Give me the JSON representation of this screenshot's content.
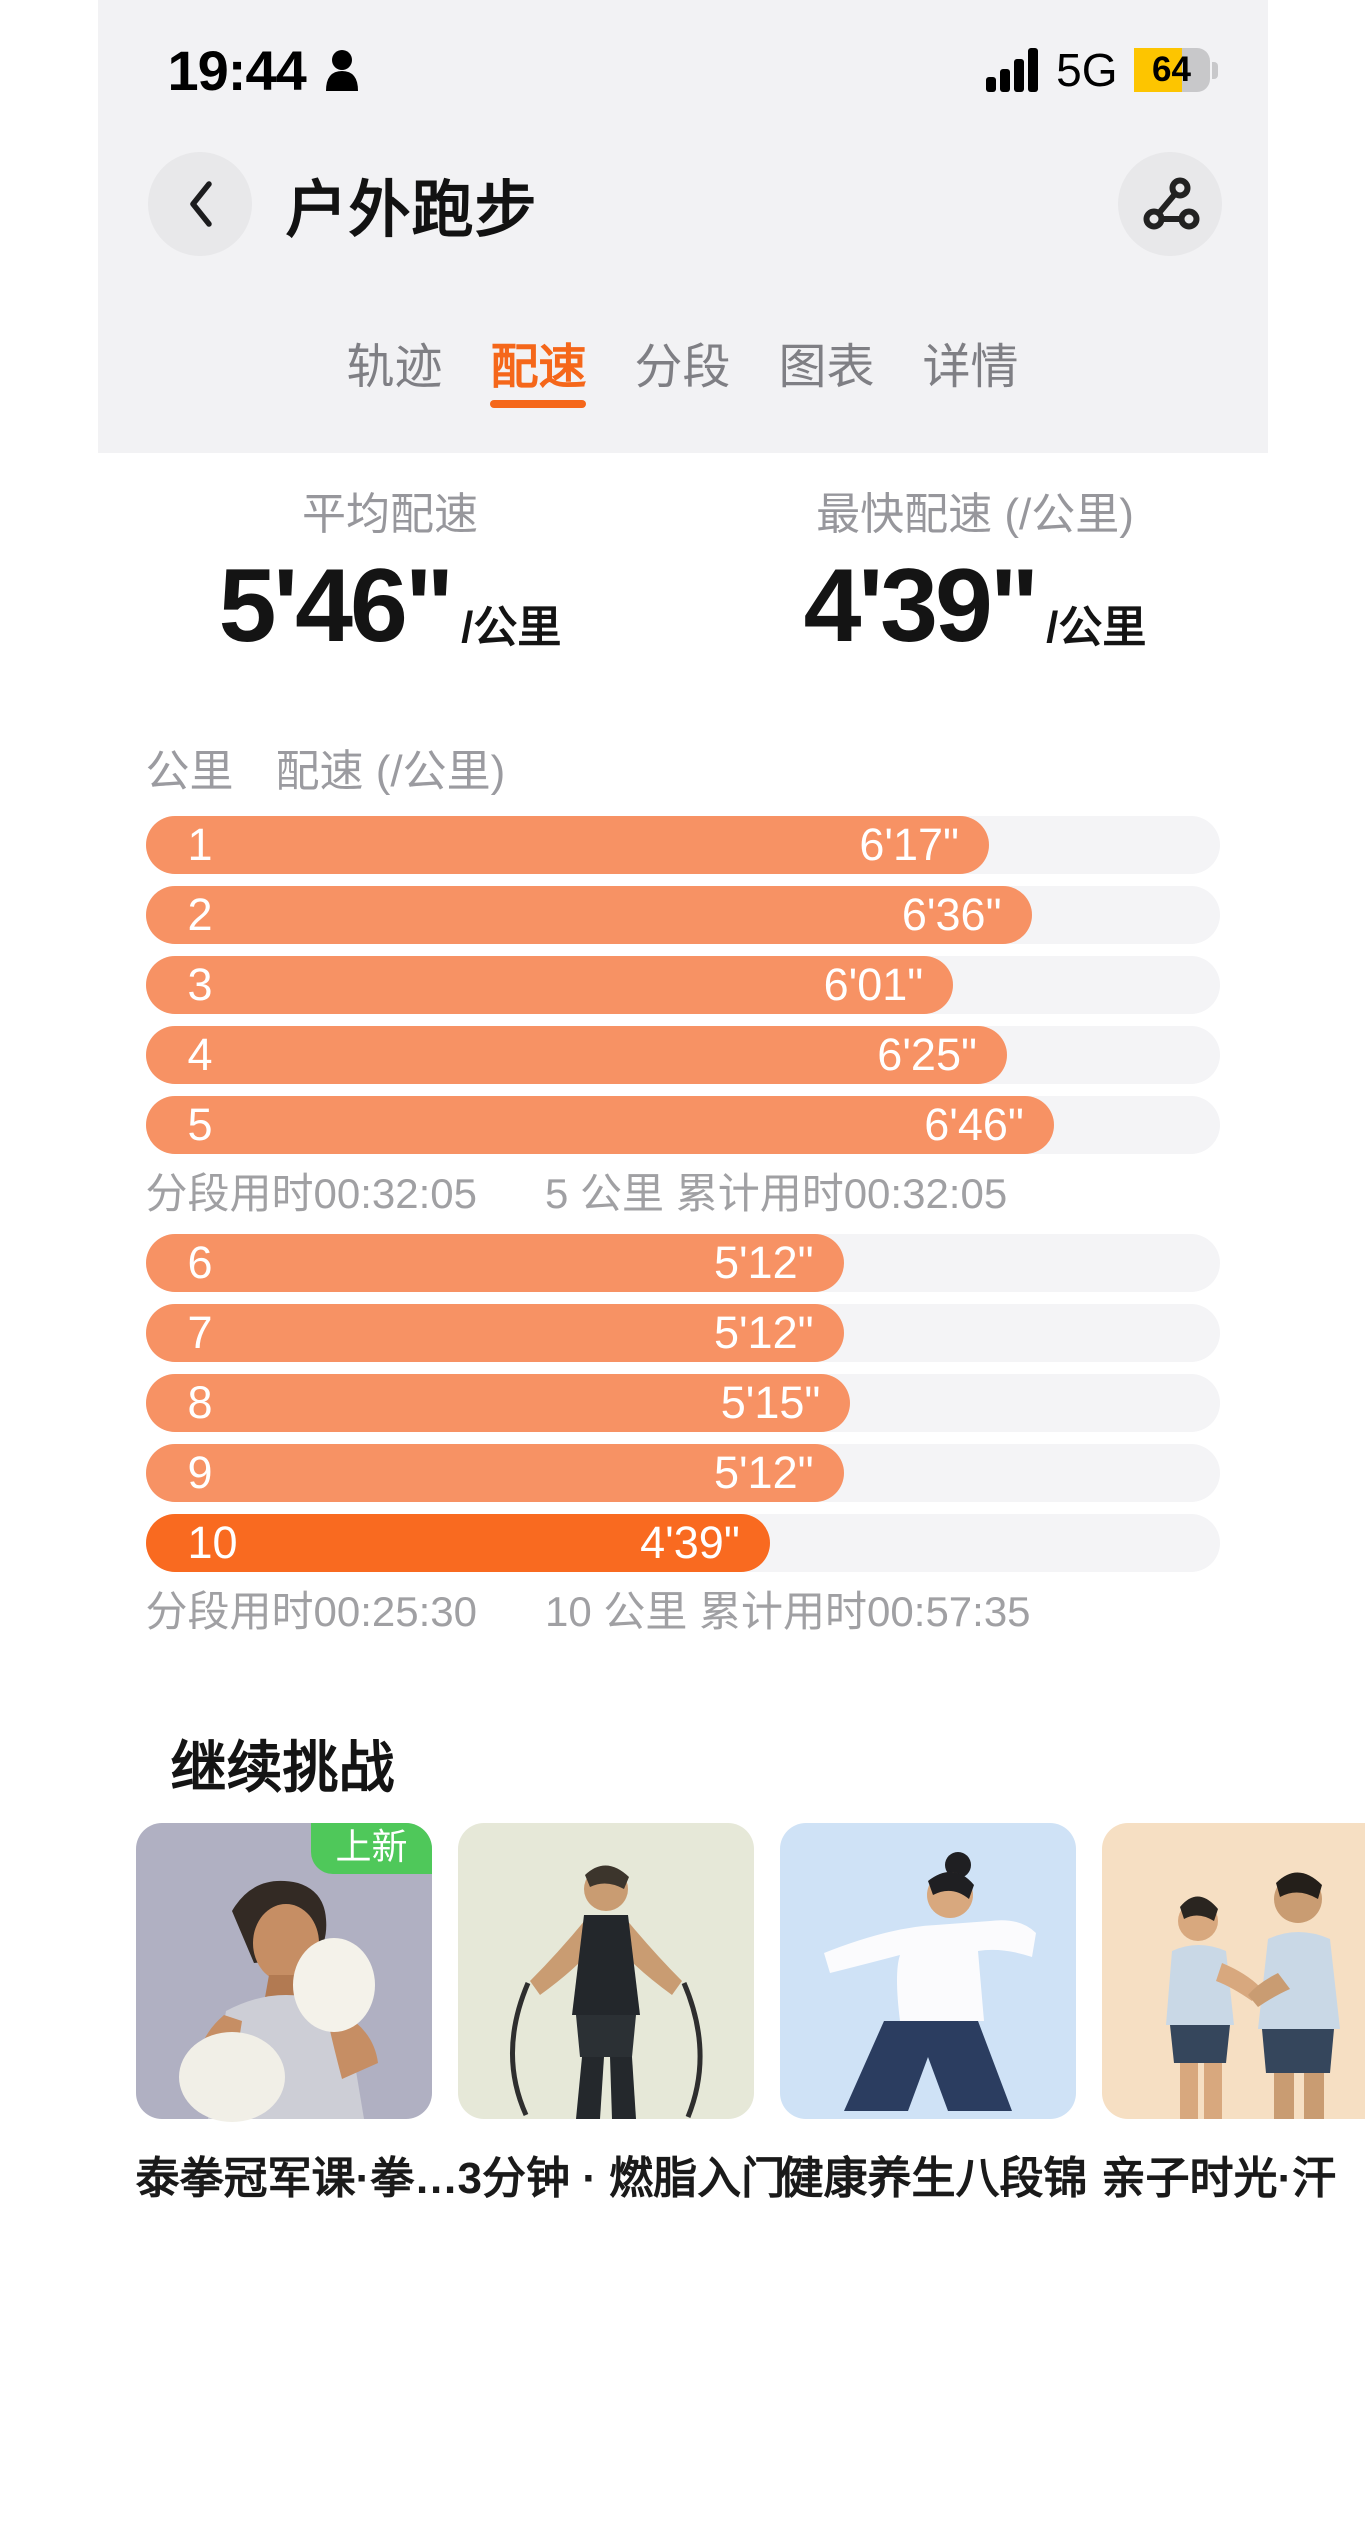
{
  "status_bar": {
    "time": "19:44",
    "network": "5G",
    "battery_percent": 64
  },
  "header": {
    "title": "户外跑步"
  },
  "tabs": [
    {
      "label": "轨迹",
      "active": false
    },
    {
      "label": "配速",
      "active": true
    },
    {
      "label": "分段",
      "active": false
    },
    {
      "label": "图表",
      "active": false
    },
    {
      "label": "详情",
      "active": false
    }
  ],
  "stats": [
    {
      "label": "平均配速",
      "value": "5'46\"",
      "unit": "/公里"
    },
    {
      "label": "最快配速 (/公里)",
      "value": "4'39\"",
      "unit": "/公里"
    }
  ],
  "chart_data": {
    "type": "bar",
    "orientation": "horizontal",
    "col_km_label": "公里",
    "col_pace_label": "配速 (/公里)",
    "full_scale_seconds": 480,
    "groups": [
      {
        "bars": [
          {
            "km": "1",
            "pace": "6'17\"",
            "pace_seconds": 377,
            "fastest": false
          },
          {
            "km": "2",
            "pace": "6'36\"",
            "pace_seconds": 396,
            "fastest": false
          },
          {
            "km": "3",
            "pace": "6'01\"",
            "pace_seconds": 361,
            "fastest": false
          },
          {
            "km": "4",
            "pace": "6'25\"",
            "pace_seconds": 385,
            "fastest": false
          },
          {
            "km": "5",
            "pace": "6'46\"",
            "pace_seconds": 406,
            "fastest": false
          }
        ],
        "summary": {
          "segment": "分段用时00:32:05",
          "cumulative": "5 公里 累计用时00:32:05"
        }
      },
      {
        "bars": [
          {
            "km": "6",
            "pace": "5'12\"",
            "pace_seconds": 312,
            "fastest": false
          },
          {
            "km": "7",
            "pace": "5'12\"",
            "pace_seconds": 312,
            "fastest": false
          },
          {
            "km": "8",
            "pace": "5'15\"",
            "pace_seconds": 315,
            "fastest": false
          },
          {
            "km": "9",
            "pace": "5'12\"",
            "pace_seconds": 312,
            "fastest": false
          },
          {
            "km": "10",
            "pace": "4'39\"",
            "pace_seconds": 279,
            "fastest": true
          }
        ],
        "summary": {
          "segment": "分段用时00:25:30",
          "cumulative": "10 公里 累计用时00:57:35"
        }
      }
    ]
  },
  "recommendations": {
    "title": "继续挑战",
    "cards": [
      {
        "title": "泰拳冠军课·拳…",
        "badge": "上新",
        "bg": "#b0b0c2",
        "figure": "boxing"
      },
      {
        "title": "3分钟 · 燃脂入门",
        "badge": null,
        "bg": "#e6e8d8",
        "figure": "jump-rope"
      },
      {
        "title": "健康养生八段锦",
        "badge": null,
        "bg": "#cfe2f6",
        "figure": "tai-chi"
      },
      {
        "title": "亲子时光·汗",
        "badge": null,
        "bg": "#f6dfc3",
        "figure": "family"
      }
    ]
  },
  "colors": {
    "accent": "#f5671a",
    "bar": "#f79264",
    "bar_fastest": "#f96a20",
    "track": "#f4f4f6",
    "badge": "#4fc85a",
    "battery": "#fdc500"
  }
}
